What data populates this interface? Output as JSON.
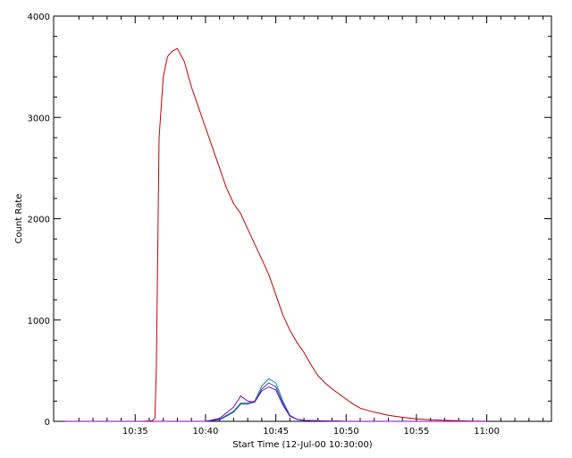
{
  "chart_data": {
    "type": "line",
    "title": "",
    "xlabel": "Start Time (12-Jul-00 10:30:00)",
    "ylabel": "Count Rate",
    "x_unit": "minutes after 10:30:00",
    "xlim": [
      -0.8,
      34.6
    ],
    "ylim": [
      0,
      4000
    ],
    "x_ticks": [
      {
        "value": 5,
        "label": "10:35"
      },
      {
        "value": 10,
        "label": "10:40"
      },
      {
        "value": 15,
        "label": "10:45"
      },
      {
        "value": 20,
        "label": "10:50"
      },
      {
        "value": 25,
        "label": "10:55"
      },
      {
        "value": 30,
        "label": "11:00"
      }
    ],
    "y_ticks": [
      {
        "value": 0,
        "label": "0"
      },
      {
        "value": 1000,
        "label": "1000"
      },
      {
        "value": 2000,
        "label": "2000"
      },
      {
        "value": 3000,
        "label": "3000"
      },
      {
        "value": 4000,
        "label": "4000"
      }
    ],
    "grid": false,
    "legend": "none",
    "series": [
      {
        "color": "#c00000",
        "x": [
          0,
          4,
          5.5,
          6.2,
          6.4,
          6.5,
          6.7,
          7.0,
          7.3,
          7.6,
          8.0,
          8.5,
          9.0,
          9.5,
          10.0,
          10.5,
          11.0,
          11.5,
          12.0,
          12.5,
          13.0,
          13.5,
          14.0,
          14.5,
          15.0,
          15.5,
          16.0,
          16.5,
          17.0,
          17.5,
          18.0,
          18.5,
          19.0,
          19.5,
          20.0,
          20.5,
          21.0,
          22.0,
          23.0,
          24.0,
          25.0,
          26.0,
          27.0,
          28.0,
          29.0,
          30.0
        ],
        "y": [
          0,
          0,
          0,
          5,
          30,
          500,
          2800,
          3400,
          3600,
          3650,
          3680,
          3550,
          3300,
          3100,
          2900,
          2700,
          2500,
          2300,
          2150,
          2050,
          1900,
          1750,
          1600,
          1450,
          1250,
          1050,
          900,
          780,
          680,
          560,
          450,
          380,
          320,
          270,
          220,
          170,
          130,
          90,
          60,
          40,
          25,
          15,
          10,
          5,
          3,
          0
        ]
      },
      {
        "color": "#008b8b",
        "x": [
          0,
          10.0,
          11.0,
          12.0,
          12.5,
          13.0,
          13.5,
          14.0,
          14.5,
          15.0,
          15.5,
          16.0,
          16.5,
          17.0,
          18.0,
          20.0,
          22.0,
          30.0
        ],
        "y": [
          0,
          0,
          20,
          100,
          180,
          180,
          200,
          350,
          420,
          380,
          200,
          60,
          20,
          10,
          5,
          0,
          0,
          0
        ]
      },
      {
        "color": "#2a40c8",
        "x": [
          0,
          10.0,
          11.0,
          12.0,
          12.5,
          13.0,
          13.5,
          14.0,
          14.5,
          15.0,
          15.5,
          16.0,
          16.5,
          17.0,
          18.0,
          20.0,
          22.0,
          30.0
        ],
        "y": [
          0,
          0,
          15,
          90,
          170,
          170,
          190,
          320,
          380,
          340,
          180,
          55,
          20,
          10,
          5,
          0,
          0,
          0
        ]
      },
      {
        "color": "#8a00c8",
        "x": [
          0,
          10.0,
          11.0,
          12.0,
          12.5,
          13.0,
          13.5,
          14.0,
          14.5,
          15.0,
          15.5,
          16.0,
          16.5,
          17.0,
          18.0,
          20.0,
          22.0,
          30.0
        ],
        "y": [
          0,
          0,
          30,
          140,
          250,
          200,
          190,
          300,
          340,
          310,
          160,
          50,
          20,
          10,
          5,
          0,
          0,
          0
        ]
      }
    ]
  }
}
